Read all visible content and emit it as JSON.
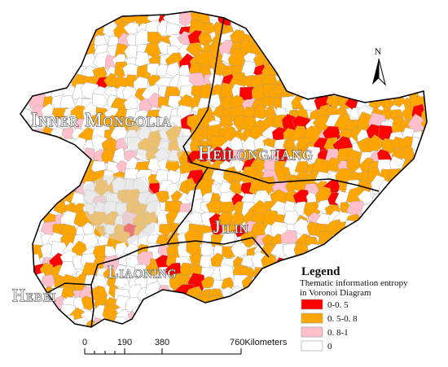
{
  "regions": [
    {
      "key": "inner_mongolia",
      "label": "Inner Mongolia"
    },
    {
      "key": "heilongjiang",
      "label": "Heilongjiang"
    },
    {
      "key": "jilin",
      "label": "Jilin"
    },
    {
      "key": "liaoning",
      "label": "Liaoning"
    },
    {
      "key": "hebei",
      "label": "Hebei"
    }
  ],
  "legend": {
    "title": "Legend",
    "subtitle_line1": "Thematic information entropy",
    "subtitle_line2": "in Voronoi Diagram",
    "classes": [
      {
        "label": "0-0. 5",
        "color": "#ff0000"
      },
      {
        "label": "0. 5-0. 8",
        "color": "#ffa500"
      },
      {
        "label": "0. 8-1",
        "color": "#ffc0cb"
      },
      {
        "label": "0",
        "color": "#ffffff"
      }
    ]
  },
  "scale_bar": {
    "ticks": [
      "0",
      "190",
      "380",
      "760Kilometers"
    ]
  },
  "north_arrow": {
    "label": "N",
    "icon": "north-arrow-icon"
  },
  "colors": {
    "high_entropy": "#ffa500",
    "low_entropy": "#ff0000",
    "mid_entropy": "#ffc0cb",
    "zero": "#ffffff",
    "boundary": "#000000",
    "cell_line": "#999999"
  }
}
